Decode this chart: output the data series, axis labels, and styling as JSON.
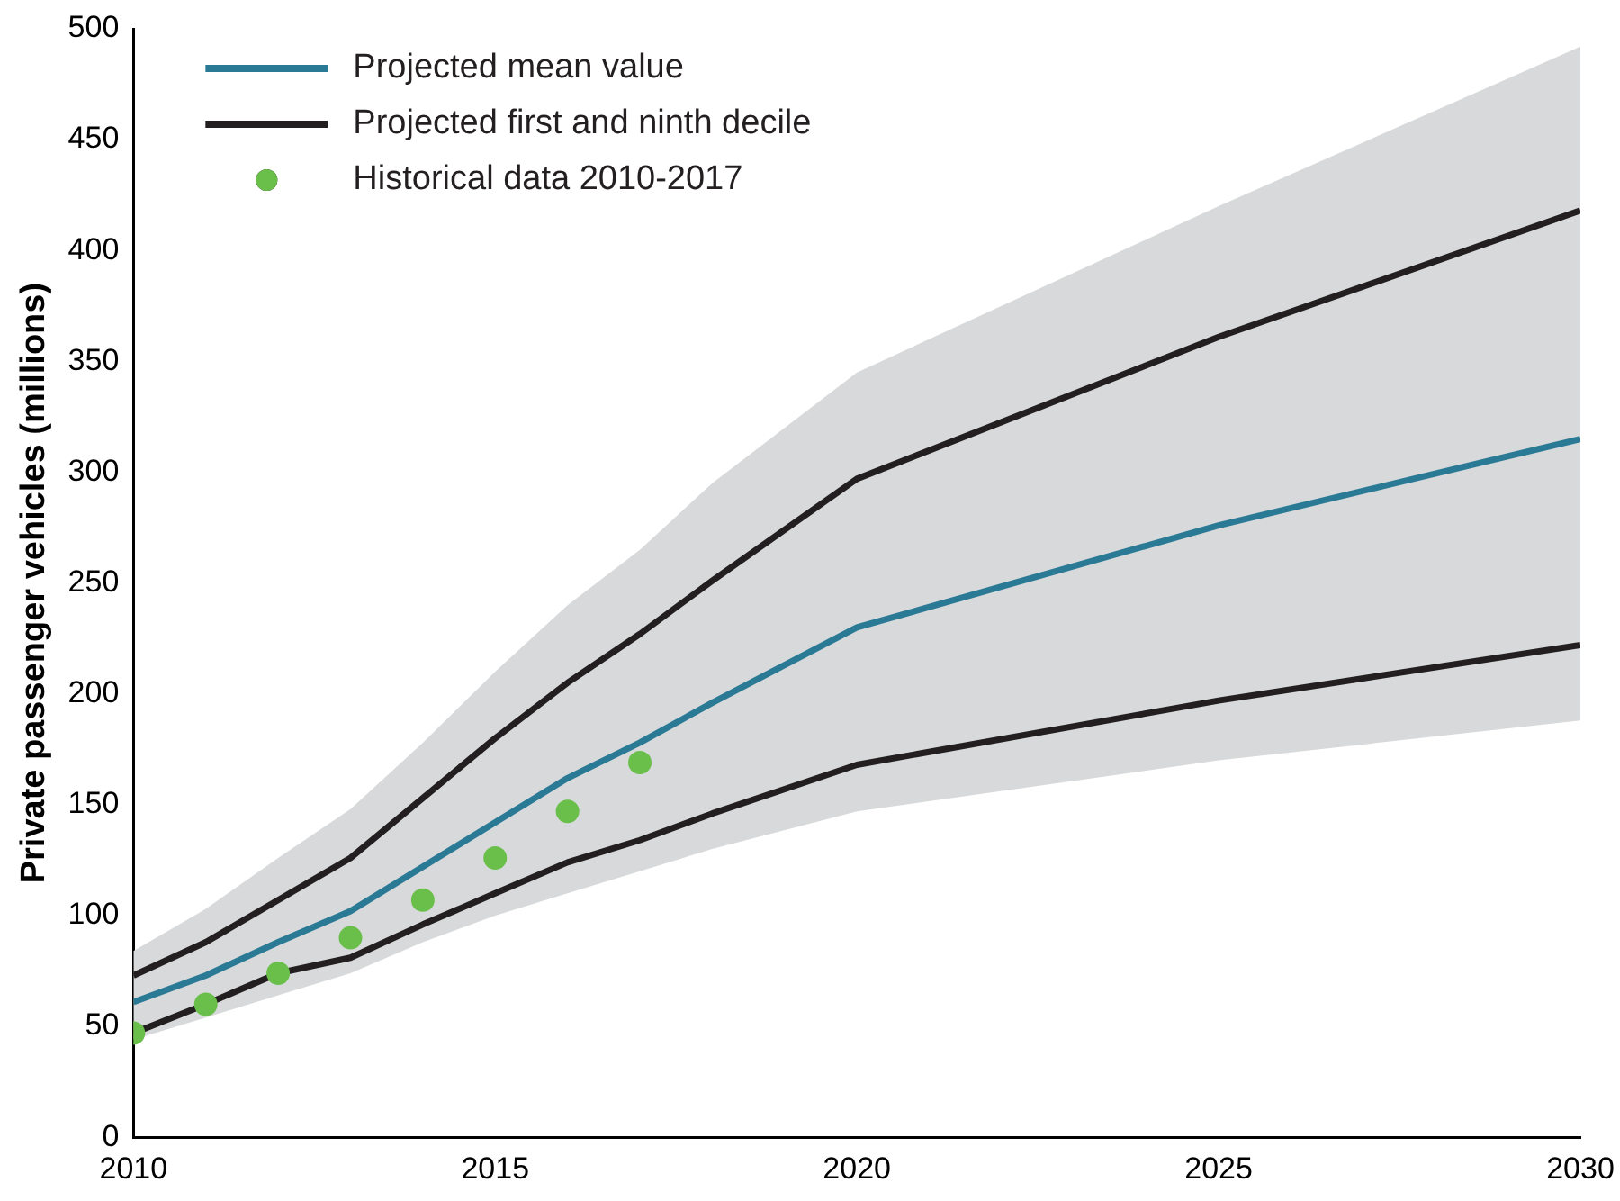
{
  "chart_data": {
    "type": "line",
    "ylabel": "Private passenger vehicles (millions)",
    "xlim": [
      2010,
      2030
    ],
    "xticks": [
      2010,
      2015,
      2020,
      2025,
      2030
    ],
    "ylim": [
      0,
      500
    ],
    "yticks": [
      0,
      50,
      100,
      150,
      200,
      250,
      300,
      350,
      400,
      450,
      500
    ],
    "grid": false,
    "legend": "top left",
    "marker": "none",
    "line_style": "solid",
    "series": [
      {
        "name": "Projected mean value",
        "color": "#2a7a96",
        "x": [
          2010,
          2011,
          2012,
          2013,
          2014,
          2015,
          2016,
          2017,
          2018,
          2020,
          2025,
          2030
        ],
        "values": [
          61,
          73,
          88,
          102,
          122,
          142,
          162,
          178,
          196,
          230,
          276,
          315
        ],
        "lower": [
          44,
          54,
          64,
          74,
          88,
          100,
          110,
          120,
          130,
          147,
          170,
          188
        ],
        "upper": [
          84,
          103,
          126,
          148,
          178,
          210,
          240,
          265,
          295,
          345,
          420,
          492
        ]
      },
      {
        "name": "Projected first and ninth decile",
        "color": "#231f20",
        "x": [
          2010,
          2011,
          2012,
          2013,
          2014,
          2015,
          2016,
          2017,
          2018,
          2020,
          2025,
          2030
        ],
        "values": [
          73,
          88,
          107,
          126,
          153,
          180,
          205,
          227,
          251,
          297,
          361,
          418
        ]
      },
      {
        "color": "#231f20",
        "x": [
          2010,
          2011,
          2012,
          2013,
          2014,
          2015,
          2016,
          2017,
          2018,
          2020,
          2025,
          2030
        ],
        "values": [
          47,
          60,
          74,
          81,
          96,
          110,
          124,
          134,
          146,
          168,
          197,
          222
        ]
      },
      {
        "name": "Historical data 2010-2017",
        "type": "scatter",
        "marker": "circle",
        "color": "#6abf4b",
        "x": [
          2010,
          2011,
          2012,
          2013,
          2014,
          2015,
          2016,
          2017
        ],
        "values": [
          47,
          60,
          74,
          90,
          107,
          126,
          147,
          169
        ]
      }
    ]
  }
}
